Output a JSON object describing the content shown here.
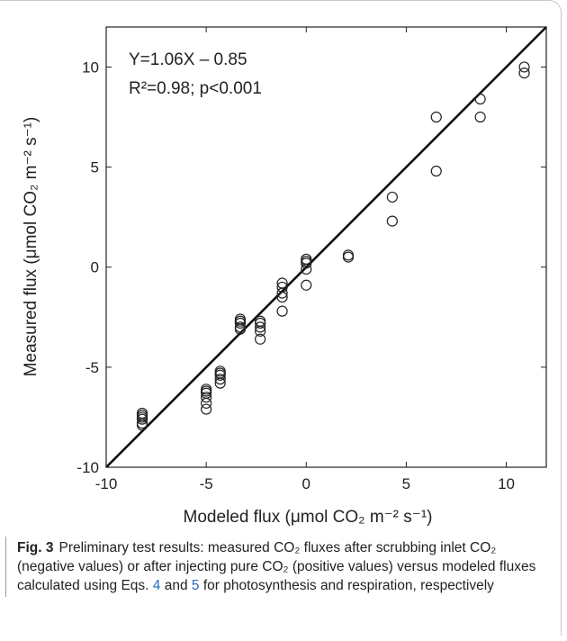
{
  "chart_data": {
    "type": "scatter",
    "y_label": "Measured flux (μmol CO₂ m⁻² s⁻¹)",
    "x_label": "Modeled flux (μmol CO₂ m⁻² s⁻¹)",
    "annotations": [
      "Y=1.06X – 0.85",
      "R²=0.98; p<0.001"
    ],
    "xlim": [
      -10,
      12
    ],
    "ylim": [
      -10,
      12
    ],
    "xticks": [
      -10,
      -5,
      0,
      5,
      10
    ],
    "yticks": [
      -10,
      -5,
      0,
      5,
      10
    ],
    "grid": false,
    "color": "#222222",
    "line": {
      "x": [
        -10,
        12
      ],
      "y": [
        -10,
        12
      ]
    },
    "x": [
      -8.2,
      -8.2,
      -8.2,
      -8.2,
      -8.2,
      -8.2,
      -5.0,
      -5.0,
      -5.0,
      -5.0,
      -5.0,
      -5.0,
      -4.3,
      -4.3,
      -4.3,
      -4.3,
      -4.3,
      -3.3,
      -3.3,
      -3.3,
      -3.3,
      -3.3,
      -2.3,
      -2.3,
      -2.3,
      -2.3,
      -2.3,
      -1.2,
      -1.2,
      -1.2,
      -1.2,
      -1.2,
      0,
      0,
      0,
      0,
      0,
      2.1,
      2.1,
      4.3,
      4.3,
      6.5,
      6.5,
      8.7,
      8.7,
      10.9,
      10.9
    ],
    "values": [
      -7.3,
      -7.4,
      -7.5,
      -7.6,
      -7.8,
      -7.9,
      -6.1,
      -6.2,
      -6.3,
      -6.5,
      -6.8,
      -7.1,
      -5.2,
      -5.3,
      -5.4,
      -5.6,
      -5.8,
      -2.6,
      -2.7,
      -2.8,
      -3.0,
      -3.1,
      -2.7,
      -2.8,
      -3.0,
      -3.2,
      -3.6,
      -0.8,
      -1.0,
      -1.3,
      -1.5,
      -2.2,
      0.4,
      0.3,
      0.2,
      -0.1,
      -0.9,
      0.5,
      0.6,
      3.5,
      2.3,
      7.5,
      4.8,
      8.4,
      7.5,
      10.0,
      9.7
    ]
  },
  "caption": {
    "label": "Fig. 3",
    "parts": [
      "Preliminary test results: measured CO₂ fluxes after scrubbing inlet CO₂ (negative values) or after injecting pure CO₂ (positive values) versus modeled fluxes calculated using Eqs. ",
      "4",
      " and ",
      "5",
      " for photosynthesis and respiration, respectively"
    ]
  }
}
